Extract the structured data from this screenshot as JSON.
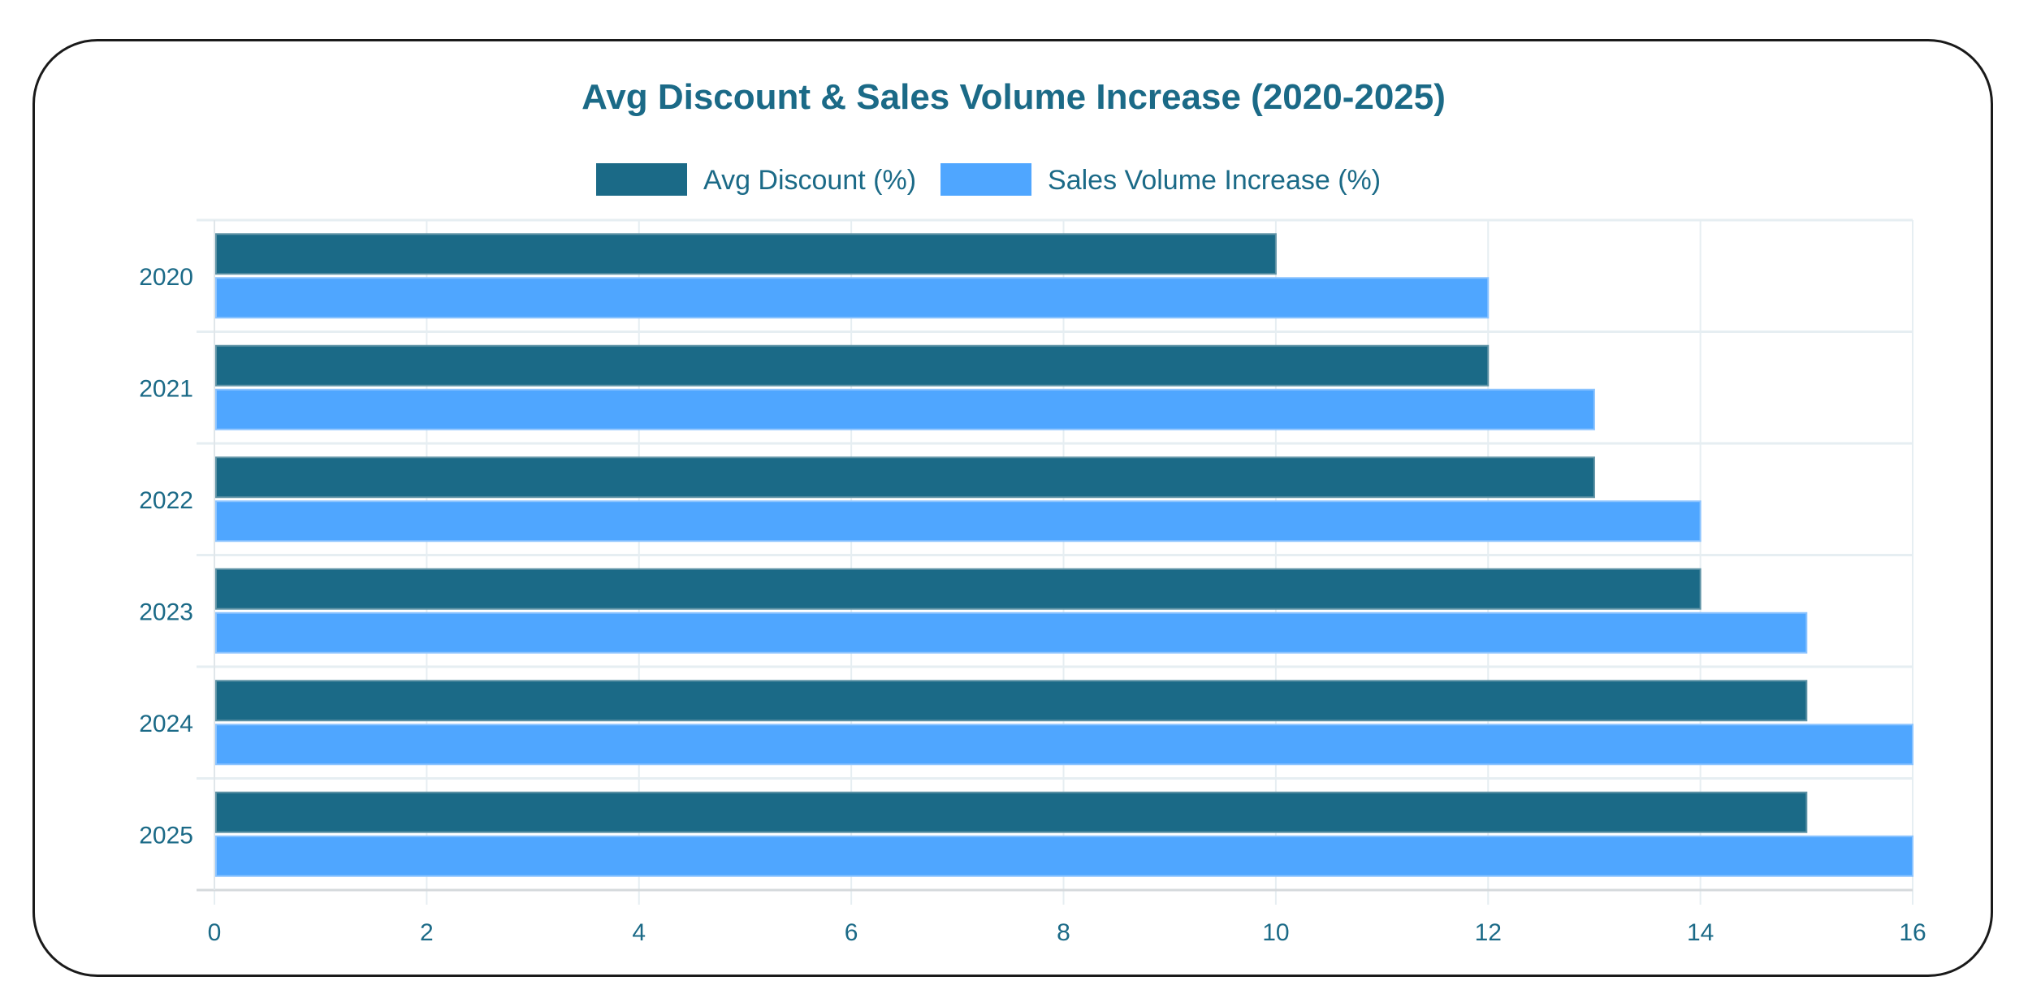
{
  "chart_data": {
    "type": "bar",
    "orientation": "horizontal",
    "title": "Avg Discount & Sales Volume Increase (2020-2025)",
    "categories": [
      "2020",
      "2021",
      "2022",
      "2023",
      "2024",
      "2025"
    ],
    "series": [
      {
        "name": "Avg Discount (%)",
        "values": [
          10,
          12,
          13,
          14,
          15,
          15
        ],
        "color": "#1b6a87"
      },
      {
        "name": "Sales Volume Increase (%)",
        "values": [
          12,
          13,
          14,
          15,
          16,
          16
        ],
        "color": "#4fa6ff"
      }
    ],
    "xlim": [
      0,
      16
    ],
    "xticks": [
      "0",
      "2",
      "4",
      "6",
      "8",
      "10",
      "12",
      "14",
      "16"
    ],
    "grid": true,
    "legend_position": "top",
    "text_color": "#1b6a87"
  }
}
